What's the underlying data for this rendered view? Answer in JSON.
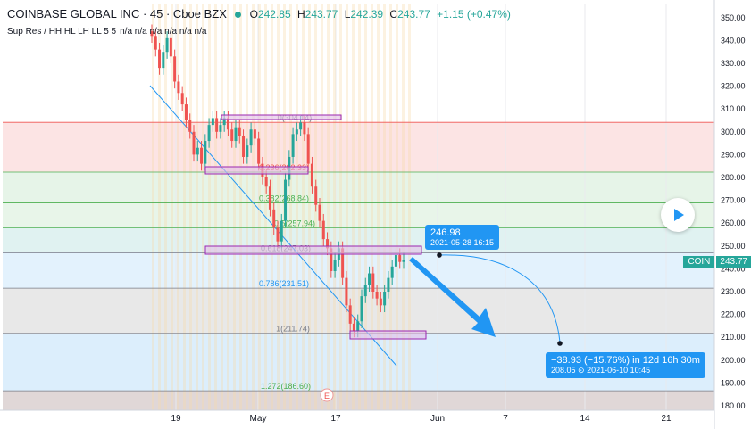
{
  "header": {
    "title": "COINBASE GLOBAL INC · 45 · Cboe BZX",
    "open_label": "O",
    "open": "242.85",
    "high_label": "H",
    "high": "243.77",
    "low_label": "L",
    "low": "242.39",
    "close_label": "C",
    "close": "243.77",
    "change": "+1.15 (+0.47%)"
  },
  "indicator": {
    "name": "Sup Res / HH HL LH LL 5 5",
    "values": "n/a n/a n/a n/a n/a n/a"
  },
  "symbol": "COIN",
  "last_price": "243.77",
  "marker_label": "E",
  "target_box": {
    "price": "246.98",
    "datetime": "2021-05-28 16:15"
  },
  "projection_box": {
    "change": "−38.93 (−15.76%) in 12d 16h 30m",
    "detail": "208.05 ⊙ 2021-06-10  10:45"
  },
  "colors": {
    "up": "#26a69a",
    "down": "#ef5350",
    "accent": "#2196f3",
    "fib_line": "#787b86",
    "rect": "#9c27b0"
  },
  "chart_data": {
    "type": "candlestick",
    "y_range": [
      180,
      355
    ],
    "y_ticks": [
      180,
      190,
      200,
      210,
      220,
      230,
      240,
      250,
      260,
      270,
      280,
      290,
      300,
      310,
      320,
      330,
      340,
      350
    ],
    "x_ticks": [
      "19",
      "May",
      "17",
      "Jun",
      "7",
      "14",
      "21"
    ],
    "fib_levels": [
      {
        "label": "0(304.14)",
        "price": 304.14,
        "fill": "#fce4e4"
      },
      {
        "label": "0.236(282.33)",
        "price": 282.33,
        "fill": "#e6f4e8"
      },
      {
        "label": "0.382(268.84)",
        "price": 268.84,
        "fill": "#e8f5e9"
      },
      {
        "label": "0.5(257.94)",
        "price": 257.94,
        "fill": "#e0f2f1"
      },
      {
        "label": "0.618(247.03)",
        "price": 247.03,
        "fill": "#e3f2fd"
      },
      {
        "label": "0.786(231.51)",
        "price": 231.51,
        "fill": "#e8e8e8"
      },
      {
        "label": "1(211.74)",
        "price": 211.74,
        "fill": "#dceefc"
      },
      {
        "label": "1.272(186.60)",
        "price": 186.6,
        "fill": "#e0d7d7"
      }
    ],
    "series": [
      {
        "name": "COIN",
        "close": [
          342,
          336,
          328,
          335,
          341,
          333,
          322,
          317,
          312,
          305,
          300,
          290,
          293,
          286,
          296,
          303,
          306,
          300,
          303,
          306,
          301,
          296,
          302,
          298,
          289,
          294,
          301,
          297,
          286,
          280,
          276,
          266,
          258,
          252,
          261,
          279,
          289,
          299,
          301,
          304,
          299,
          286,
          276,
          268,
          261,
          253,
          249,
          239,
          244,
          249,
          236,
          224,
          216,
          213,
          217,
          228,
          233,
          238,
          230,
          227,
          224,
          230,
          236,
          241,
          246,
          243,
          244
        ]
      }
    ]
  }
}
